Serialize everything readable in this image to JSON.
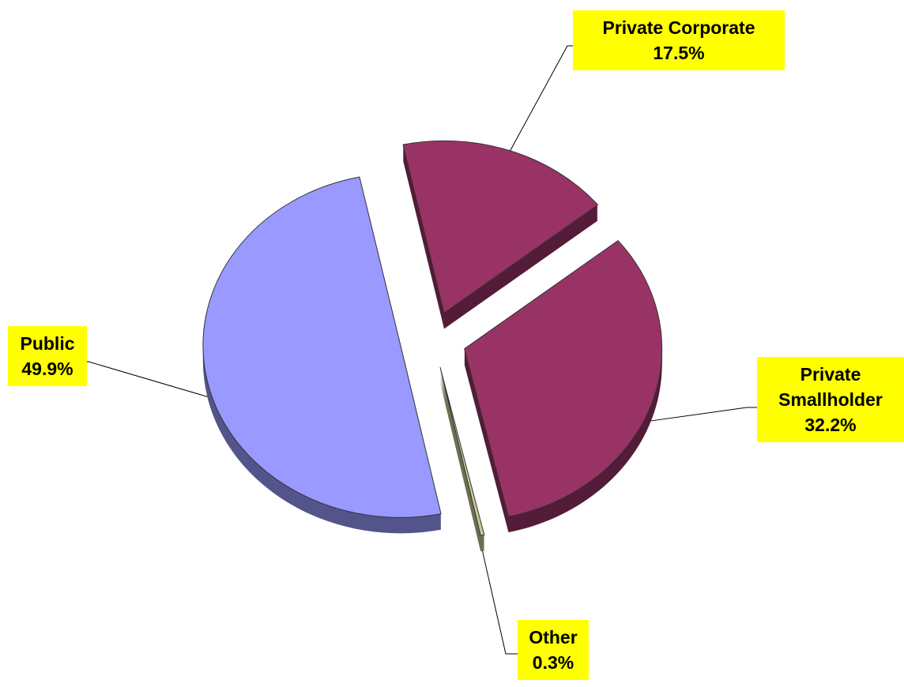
{
  "chart_data": {
    "type": "pie",
    "categories": [
      "Private Corporate",
      "Private Smallholder",
      "Other",
      "Public"
    ],
    "values": [
      17.5,
      32.2,
      0.3,
      49.9
    ],
    "value_labels": [
      "17.5%",
      "32.2%",
      "0.3%",
      "49.9%"
    ],
    "colors": [
      "#993366",
      "#993366",
      "#c8c896",
      "#9999ff"
    ]
  }
}
